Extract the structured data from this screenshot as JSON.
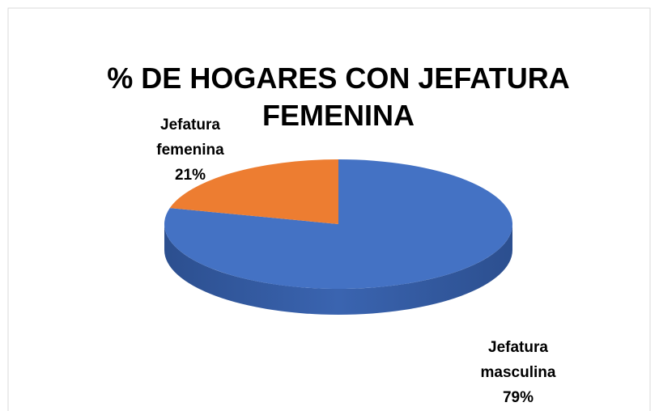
{
  "chart_data": {
    "type": "pie3d",
    "title": "% DE HOGARES CON JEFATURA FEMENINA",
    "categories": [
      "Jefatura masculina",
      "Jefatura femenina"
    ],
    "values": [
      79,
      21
    ],
    "value_labels": [
      "79%",
      "21%"
    ],
    "colors": [
      "#4472c4",
      "#ed7d31"
    ]
  }
}
